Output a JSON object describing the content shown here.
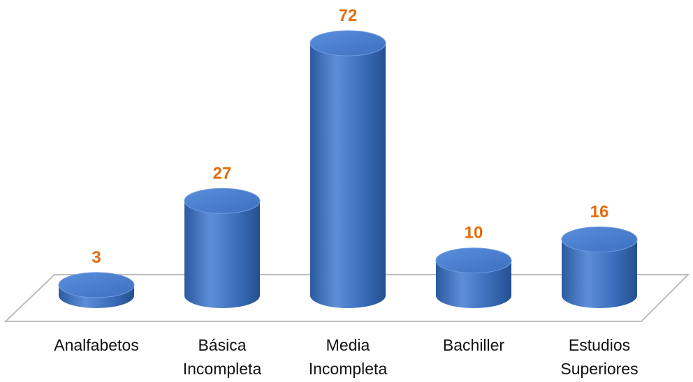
{
  "chart_data": {
    "type": "bar",
    "categories": [
      "Analfabetos",
      "Básica Incompleta",
      "Media Incompleta",
      "Bachiller",
      "Estudios Superiores"
    ],
    "values": [
      3,
      27,
      72,
      10,
      16
    ],
    "color": "#3f73c0"
  }
}
